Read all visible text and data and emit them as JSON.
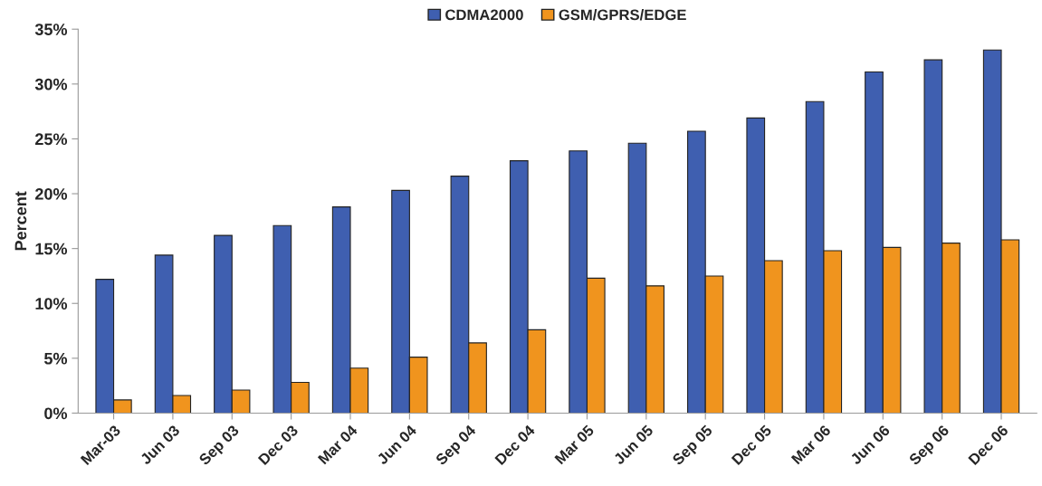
{
  "chart_data": {
    "type": "bar",
    "ylabel": "Percent",
    "categories": [
      "Mar-03",
      "Jun 03",
      "Sep 03",
      "Dec 03",
      "Mar 04",
      "Jun 04",
      "Sep 04",
      "Dec 04",
      "Mar 05",
      "Jun 05",
      "Sep 05",
      "Dec 05",
      "Mar 06",
      "Jun 06",
      "Sep 06",
      "Dec 06"
    ],
    "series": [
      {
        "name": "CDMA2000",
        "color": "#3f5fb0",
        "values": [
          12.2,
          14.4,
          16.2,
          17.1,
          18.8,
          20.3,
          21.6,
          23.0,
          23.9,
          24.6,
          25.7,
          26.9,
          28.4,
          31.1,
          32.2,
          33.1
        ]
      },
      {
        "name": "GSM/GPRS/EDGE",
        "color": "#f0941e",
        "values": [
          1.2,
          1.6,
          2.1,
          2.8,
          4.1,
          5.1,
          6.4,
          7.6,
          12.3,
          11.6,
          12.5,
          13.9,
          14.8,
          15.1,
          15.5,
          15.8
        ]
      }
    ],
    "ylim": [
      0,
      35
    ],
    "yticks": [
      {
        "value": 0,
        "label": "0%"
      },
      {
        "value": 5,
        "label": "5%"
      },
      {
        "value": 10,
        "label": "10%"
      },
      {
        "value": 15,
        "label": "15%"
      },
      {
        "value": 20,
        "label": "20%"
      },
      {
        "value": 25,
        "label": "25%"
      },
      {
        "value": 30,
        "label": "30%"
      },
      {
        "value": 35,
        "label": "35%"
      }
    ],
    "legend": "top",
    "grid": false
  }
}
